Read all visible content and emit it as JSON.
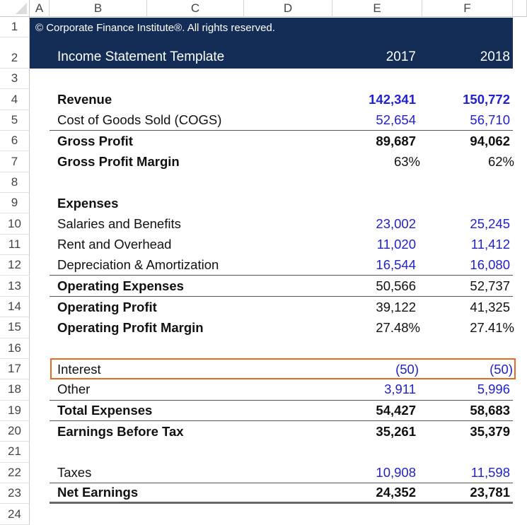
{
  "columns": [
    "A",
    "B",
    "C",
    "D",
    "E",
    "F"
  ],
  "header": {
    "copyright": "© Corporate Finance Institute®. All rights reserved.",
    "title": "Income Statement Template",
    "years": [
      "2017",
      "2018"
    ],
    "banner_color": "#132d56"
  },
  "highlight": {
    "row": 17,
    "color": "#e46c22"
  },
  "input_color": "#2222cc",
  "rows": [
    {
      "n": 3
    },
    {
      "n": 4,
      "label": "Revenue",
      "v": [
        "142,341",
        "150,772"
      ],
      "bold_label": true,
      "bold_values": true,
      "input": true
    },
    {
      "n": 5,
      "label": "Cost of Goods Sold (COGS)",
      "v": [
        "52,654",
        "56,710"
      ],
      "input": true,
      "border": "single"
    },
    {
      "n": 6,
      "label": "Gross Profit",
      "v": [
        "89,687",
        "94,062"
      ],
      "bold_label": true,
      "bold_values": true
    },
    {
      "n": 7,
      "label": "Gross Profit Margin",
      "v": [
        "63%",
        "62%"
      ],
      "bold_label": true,
      "percent": true
    },
    {
      "n": 8
    },
    {
      "n": 9,
      "label": "Expenses",
      "bold_label": true
    },
    {
      "n": 10,
      "label": "Salaries and Benefits",
      "v": [
        "23,002",
        "25,245"
      ],
      "input": true
    },
    {
      "n": 11,
      "label": "Rent and Overhead",
      "v": [
        "11,020",
        "11,412"
      ],
      "input": true
    },
    {
      "n": 12,
      "label": "Depreciation & Amortization",
      "v": [
        "16,544",
        "16,080"
      ],
      "input": true,
      "border": "single"
    },
    {
      "n": 13,
      "label": "Operating Expenses",
      "v": [
        "50,566",
        "52,737"
      ],
      "bold_label": true,
      "border": "single"
    },
    {
      "n": 14,
      "label": "Operating Profit",
      "v": [
        "39,122",
        "41,325"
      ],
      "bold_label": true
    },
    {
      "n": 15,
      "label": "Operating Profit Margin",
      "v": [
        "27.48%",
        "27.41%"
      ],
      "bold_label": true,
      "percent": true
    },
    {
      "n": 16
    },
    {
      "n": 17,
      "label": "Interest",
      "v": [
        "(50)",
        "(50)"
      ],
      "input": true,
      "paren": true
    },
    {
      "n": 18,
      "label": "Other",
      "v": [
        "3,911",
        "5,996"
      ],
      "input": true,
      "border": "single"
    },
    {
      "n": 19,
      "label": "Total Expenses",
      "v": [
        "54,427",
        "58,683"
      ],
      "bold_label": true,
      "bold_values": true,
      "border": "single"
    },
    {
      "n": 20,
      "label": "Earnings Before Tax",
      "v": [
        "35,261",
        "35,379"
      ],
      "bold_label": true,
      "bold_values": true
    },
    {
      "n": 21
    },
    {
      "n": 22,
      "label": "Taxes",
      "v": [
        "10,908",
        "11,598"
      ],
      "input": true,
      "border": "single"
    },
    {
      "n": 23,
      "label": "Net Earnings",
      "v": [
        "24,352",
        "23,781"
      ],
      "bold_label": true,
      "bold_values": true,
      "border": "thick"
    },
    {
      "n": 24
    }
  ]
}
